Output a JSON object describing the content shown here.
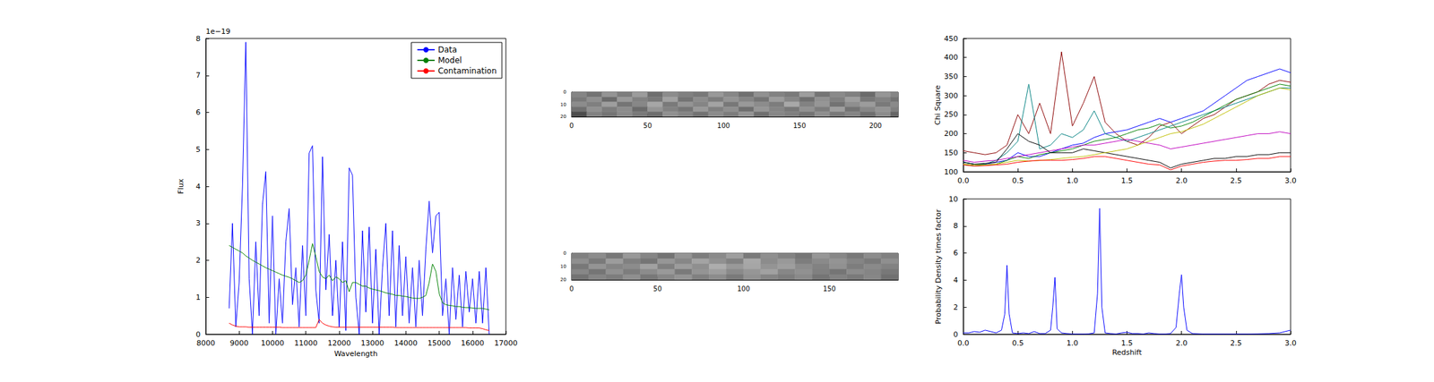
{
  "chart_data": [
    {
      "type": "line",
      "x_label": "Wavelength",
      "y_label": "Flux",
      "annotation": "1e−19",
      "legend": "upper right",
      "grid": false,
      "xlim": [
        8000,
        17000
      ],
      "xticks": [
        8000,
        9000,
        10000,
        11000,
        12000,
        13000,
        14000,
        15000,
        16000,
        17000
      ],
      "ylim": [
        0,
        8
      ],
      "yticks": [
        0,
        1,
        2,
        3,
        4,
        5,
        6,
        7,
        8
      ],
      "x": [
        8700,
        8800,
        8900,
        9000,
        9100,
        9200,
        9300,
        9400,
        9500,
        9600,
        9700,
        9800,
        9900,
        10000,
        10100,
        10200,
        10300,
        10400,
        10500,
        10600,
        10700,
        10800,
        10900,
        11000,
        11100,
        11200,
        11300,
        11400,
        11500,
        11600,
        11700,
        11800,
        11900,
        12000,
        12100,
        12200,
        12300,
        12400,
        12500,
        12600,
        12700,
        12800,
        12900,
        13000,
        13100,
        13200,
        13300,
        13400,
        13500,
        13600,
        13700,
        13800,
        13900,
        14000,
        14100,
        14200,
        14300,
        14400,
        14500,
        14600,
        14700,
        14800,
        14900,
        15000,
        15100,
        15200,
        15300,
        15400,
        15500,
        15600,
        15700,
        15800,
        15900,
        16000,
        16100,
        16200,
        16300,
        16400,
        16500
      ],
      "series": [
        {
          "name": "Data",
          "color": "#0000ff",
          "values": [
            0.7,
            3.0,
            0.2,
            1.4,
            4.0,
            7.9,
            1.5,
            0,
            2.5,
            0.5,
            3.5,
            4.4,
            0.3,
            3.2,
            0,
            1.5,
            0.3,
            2.5,
            3.4,
            0.8,
            1.8,
            0.2,
            2.4,
            0.5,
            4.9,
            5.1,
            1.2,
            0.3,
            4.8,
            1.2,
            2.7,
            0.5,
            2.0,
            0.2,
            2.5,
            0.1,
            4.5,
            4.3,
            1.0,
            0,
            2.8,
            0.6,
            2.9,
            0.3,
            2.3,
            0,
            1.8,
            3.0,
            0.5,
            2.8,
            0.2,
            2.4,
            0.5,
            2.1,
            0.3,
            1.8,
            0.2,
            2.0,
            0.5,
            2.3,
            3.6,
            2.2,
            3.2,
            3.3,
            0.5,
            1.5,
            0,
            1.8,
            0.4,
            1.6,
            0.2,
            1.7,
            0.6,
            1.5,
            0.3,
            1.7,
            0.3,
            1.8,
            0
          ]
        },
        {
          "name": "Model",
          "color": "#008000",
          "values": [
            2.4,
            2.35,
            2.3,
            2.25,
            2.2,
            2.12,
            2.06,
            2.0,
            1.95,
            1.9,
            1.85,
            1.8,
            1.76,
            1.72,
            1.68,
            1.64,
            1.6,
            1.57,
            1.54,
            1.5,
            1.45,
            1.4,
            1.45,
            1.6,
            2.0,
            2.45,
            2.1,
            1.7,
            1.55,
            1.5,
            1.6,
            1.45,
            1.55,
            1.5,
            1.4,
            1.45,
            1.15,
            1.4,
            1.4,
            1.35,
            1.3,
            1.3,
            1.25,
            1.22,
            1.2,
            1.18,
            1.15,
            1.12,
            1.1,
            1.08,
            1.05,
            1.05,
            1.03,
            1.02,
            1.0,
            0.98,
            0.97,
            0.97,
            1.0,
            1.05,
            1.4,
            1.9,
            1.7,
            1.1,
            0.85,
            0.8,
            0.78,
            0.77,
            0.75,
            0.75,
            0.73,
            0.72,
            0.72,
            0.71,
            0.7,
            0.7,
            0.7,
            0.68,
            0.66
          ]
        },
        {
          "name": "Contamination",
          "color": "#ff0000",
          "values": [
            0.3,
            0.25,
            0.22,
            0.2,
            0.2,
            0.2,
            0.19,
            0.19,
            0.19,
            0.19,
            0.19,
            0.19,
            0.19,
            0.19,
            0.19,
            0.19,
            0.18,
            0.18,
            0.18,
            0.18,
            0.18,
            0.18,
            0.18,
            0.18,
            0.18,
            0.18,
            0.18,
            0.4,
            0.3,
            0.25,
            0.22,
            0.2,
            0.19,
            0.19,
            0.19,
            0.19,
            0.19,
            0.19,
            0.19,
            0.19,
            0.19,
            0.19,
            0.19,
            0.19,
            0.19,
            0.19,
            0.19,
            0.19,
            0.19,
            0.19,
            0.18,
            0.18,
            0.18,
            0.18,
            0.18,
            0.18,
            0.18,
            0.18,
            0.18,
            0.18,
            0.18,
            0.18,
            0.18,
            0.18,
            0.18,
            0.18,
            0.18,
            0.18,
            0.18,
            0.18,
            0.18,
            0.18,
            0.17,
            0.17,
            0.17,
            0.17,
            0.15,
            0.12,
            0.1
          ]
        }
      ]
    },
    {
      "type": "heatmap",
      "grid": false,
      "xlim": [
        0,
        215
      ],
      "xticks": [
        0,
        50,
        100,
        150,
        200
      ],
      "ylim": [
        0,
        20
      ],
      "yticks": [
        0,
        10,
        20
      ],
      "zlim": [
        0,
        1
      ],
      "x_edges": [
        0,
        10,
        20,
        30,
        40,
        50,
        60,
        70,
        80,
        90,
        100,
        110,
        120,
        130,
        140,
        150,
        160,
        170,
        180,
        190,
        200,
        210,
        215
      ],
      "y_edges": [
        0,
        4,
        8,
        12,
        16,
        20
      ],
      "cells": [
        [
          0.52,
          0.45,
          0.58,
          0.49,
          0.61,
          0.43,
          0.55,
          0.5,
          0.47,
          0.6,
          0.53,
          0.44,
          0.57,
          0.51,
          0.48,
          0.62,
          0.46,
          0.54,
          0.5,
          0.42,
          0.59,
          0.52
        ],
        [
          0.48,
          0.56,
          0.42,
          0.6,
          0.51,
          0.47,
          0.63,
          0.45,
          0.55,
          0.49,
          0.58,
          0.52,
          0.46,
          0.61,
          0.53,
          0.44,
          0.57,
          0.5,
          0.62,
          0.47,
          0.51,
          0.45
        ],
        [
          0.55,
          0.5,
          0.62,
          0.46,
          0.53,
          0.65,
          0.48,
          0.58,
          0.52,
          0.64,
          0.47,
          0.6,
          0.55,
          0.49,
          0.66,
          0.51,
          0.59,
          0.45,
          0.56,
          0.61,
          0.48,
          0.54
        ],
        [
          0.44,
          0.57,
          0.49,
          0.55,
          0.42,
          0.58,
          0.51,
          0.46,
          0.6,
          0.5,
          0.56,
          0.43,
          0.59,
          0.52,
          0.47,
          0.57,
          0.49,
          0.62,
          0.45,
          0.53,
          0.58,
          0.5
        ],
        [
          0.3,
          0.51,
          0.46,
          0.54,
          0.48,
          0.43,
          0.57,
          0.52,
          0.45,
          0.55,
          0.49,
          0.58,
          0.44,
          0.53,
          0.5,
          0.46,
          0.56,
          0.48,
          0.52,
          0.44,
          0.55,
          0.4
        ]
      ]
    },
    {
      "type": "heatmap",
      "grid": false,
      "xlim": [
        0,
        190
      ],
      "xticks": [
        0,
        50,
        100,
        150
      ],
      "ylim": [
        0,
        20
      ],
      "yticks": [
        0,
        10,
        20
      ],
      "zlim": [
        0,
        1
      ],
      "x_edges": [
        0,
        10,
        20,
        30,
        40,
        50,
        60,
        70,
        80,
        90,
        100,
        110,
        120,
        130,
        140,
        150,
        160,
        170,
        180,
        190
      ],
      "y_edges": [
        0,
        4,
        8,
        12,
        16,
        20
      ],
      "cells": [
        [
          0.5,
          0.55,
          0.47,
          0.6,
          0.52,
          0.45,
          0.58,
          0.49,
          0.54,
          0.62,
          0.48,
          0.56,
          0.51,
          0.46,
          0.59,
          0.53,
          0.47,
          0.55,
          0.5
        ],
        [
          0.56,
          0.48,
          0.61,
          0.5,
          0.46,
          0.59,
          0.53,
          0.64,
          0.57,
          0.51,
          0.66,
          0.55,
          0.6,
          0.49,
          0.54,
          0.58,
          0.52,
          0.48,
          0.56
        ],
        [
          0.47,
          0.58,
          0.52,
          0.55,
          0.63,
          0.5,
          0.61,
          0.56,
          0.68,
          0.6,
          0.65,
          0.58,
          0.62,
          0.55,
          0.51,
          0.57,
          0.49,
          0.54,
          0.51
        ],
        [
          0.53,
          0.46,
          0.57,
          0.49,
          0.55,
          0.6,
          0.48,
          0.58,
          0.62,
          0.54,
          0.59,
          0.63,
          0.53,
          0.57,
          0.5,
          0.46,
          0.55,
          0.52,
          0.47
        ],
        [
          0.45,
          0.52,
          0.49,
          0.56,
          0.47,
          0.53,
          0.58,
          0.5,
          0.55,
          0.48,
          0.57,
          0.52,
          0.49,
          0.54,
          0.46,
          0.51,
          0.48,
          0.53,
          0.44
        ]
      ]
    },
    {
      "type": "line",
      "y_label": "Chi Square",
      "grid": false,
      "xlim": [
        0,
        3
      ],
      "xticks": [
        {
          "value": 0,
          "label": "0.0"
        },
        0.5,
        {
          "value": 1,
          "label": "1.0"
        },
        1.5,
        {
          "value": 2,
          "label": "2.0"
        },
        2.5,
        {
          "value": 3,
          "label": "3.0"
        }
      ],
      "ylim": [
        100,
        450
      ],
      "yticks": [
        100,
        150,
        200,
        250,
        300,
        350,
        400,
        450
      ],
      "x": [
        0,
        0.1,
        0.2,
        0.3,
        0.4,
        0.5,
        0.6,
        0.7,
        0.8,
        0.9,
        1.0,
        1.1,
        1.2,
        1.3,
        1.4,
        1.5,
        1.6,
        1.7,
        1.8,
        1.9,
        2.0,
        2.1,
        2.2,
        2.3,
        2.4,
        2.5,
        2.6,
        2.7,
        2.8,
        2.9,
        3.0
      ],
      "series": [
        {
          "color": "#8b0000",
          "values": [
            155,
            150,
            145,
            150,
            170,
            250,
            200,
            280,
            200,
            415,
            220,
            280,
            350,
            230,
            200,
            180,
            170,
            190,
            220,
            230,
            200,
            220,
            240,
            250,
            270,
            290,
            300,
            310,
            330,
            340,
            335
          ]
        },
        {
          "color": "#0000ff",
          "values": [
            125,
            120,
            120,
            125,
            130,
            150,
            140,
            140,
            150,
            160,
            170,
            175,
            190,
            200,
            205,
            210,
            220,
            230,
            240,
            230,
            240,
            250,
            260,
            280,
            300,
            320,
            340,
            350,
            360,
            370,
            360
          ]
        },
        {
          "color": "#008080",
          "values": [
            125,
            120,
            120,
            130,
            150,
            180,
            330,
            160,
            170,
            200,
            190,
            210,
            260,
            200,
            190,
            180,
            190,
            200,
            210,
            220,
            230,
            240,
            250,
            260,
            270,
            280,
            290,
            300,
            310,
            320,
            320
          ]
        },
        {
          "color": "#008000",
          "values": [
            120,
            115,
            118,
            120,
            130,
            140,
            135,
            145,
            150,
            155,
            160,
            170,
            180,
            185,
            190,
            200,
            210,
            215,
            225,
            215,
            220,
            230,
            245,
            260,
            275,
            290,
            300,
            310,
            320,
            330,
            325
          ]
        },
        {
          "color": "#bf00bf",
          "values": [
            130,
            125,
            128,
            130,
            135,
            140,
            145,
            150,
            155,
            160,
            165,
            170,
            170,
            175,
            180,
            185,
            180,
            175,
            170,
            160,
            165,
            170,
            175,
            180,
            185,
            190,
            195,
            200,
            200,
            205,
            200
          ]
        },
        {
          "color": "#000000",
          "values": [
            125,
            120,
            122,
            125,
            160,
            200,
            180,
            170,
            150,
            150,
            150,
            160,
            155,
            150,
            145,
            140,
            135,
            130,
            125,
            110,
            120,
            125,
            130,
            135,
            135,
            140,
            140,
            145,
            145,
            150,
            150
          ]
        },
        {
          "color": "#bfbf00",
          "values": [
            120,
            118,
            118,
            120,
            125,
            130,
            128,
            130,
            132,
            135,
            138,
            140,
            145,
            150,
            155,
            160,
            170,
            180,
            190,
            200,
            205,
            215,
            225,
            240,
            255,
            270,
            285,
            300,
            310,
            320,
            315
          ]
        },
        {
          "color": "#ff0000",
          "values": [
            118,
            115,
            116,
            118,
            120,
            125,
            128,
            130,
            130,
            130,
            132,
            135,
            140,
            140,
            135,
            130,
            125,
            120,
            118,
            105,
            115,
            120,
            125,
            128,
            130,
            130,
            132,
            135,
            135,
            140,
            140
          ]
        }
      ]
    },
    {
      "type": "line",
      "x_label": "Redshift",
      "y_label": "Probability Density times factor",
      "grid": false,
      "xlim": [
        0,
        3
      ],
      "xticks": [
        {
          "value": 0,
          "label": "0.0"
        },
        0.5,
        {
          "value": 1,
          "label": "1.0"
        },
        1.5,
        {
          "value": 2,
          "label": "2.0"
        },
        2.5,
        {
          "value": 3,
          "label": "3.0"
        }
      ],
      "ylim": [
        0,
        10
      ],
      "yticks": [
        0,
        2,
        4,
        6,
        8,
        10
      ],
      "x": [
        0,
        0.05,
        0.1,
        0.15,
        0.2,
        0.25,
        0.3,
        0.35,
        0.38,
        0.4,
        0.42,
        0.45,
        0.5,
        0.55,
        0.6,
        0.65,
        0.7,
        0.75,
        0.8,
        0.82,
        0.84,
        0.86,
        0.9,
        0.95,
        1.0,
        1.05,
        1.1,
        1.15,
        1.2,
        1.23,
        1.25,
        1.27,
        1.3,
        1.35,
        1.4,
        1.45,
        1.5,
        1.55,
        1.6,
        1.65,
        1.7,
        1.75,
        1.8,
        1.85,
        1.9,
        1.95,
        1.98,
        2.0,
        2.02,
        2.05,
        2.1,
        2.2,
        2.3,
        2.4,
        2.5,
        2.6,
        2.7,
        2.8,
        2.9,
        3.0
      ],
      "series": [
        {
          "color": "#0000ff",
          "values": [
            0.1,
            0.1,
            0.2,
            0.15,
            0.3,
            0.2,
            0.1,
            0.3,
            1.5,
            5.1,
            1.5,
            0.1,
            0.05,
            0.1,
            0.05,
            0.2,
            0.05,
            0.05,
            0.3,
            2.0,
            4.2,
            0.4,
            0.1,
            0.05,
            0.02,
            0.02,
            0.02,
            0.03,
            0.1,
            3.0,
            9.3,
            2.0,
            0.1,
            0.05,
            0.02,
            0.1,
            0.15,
            0.05,
            0.05,
            0.02,
            0.1,
            0.05,
            0.02,
            0.02,
            0.05,
            0.5,
            3.0,
            4.4,
            2.0,
            0.3,
            0.05,
            0.02,
            0.02,
            0.02,
            0.02,
            0.02,
            0.03,
            0.05,
            0.1,
            0.3
          ]
        }
      ]
    }
  ]
}
